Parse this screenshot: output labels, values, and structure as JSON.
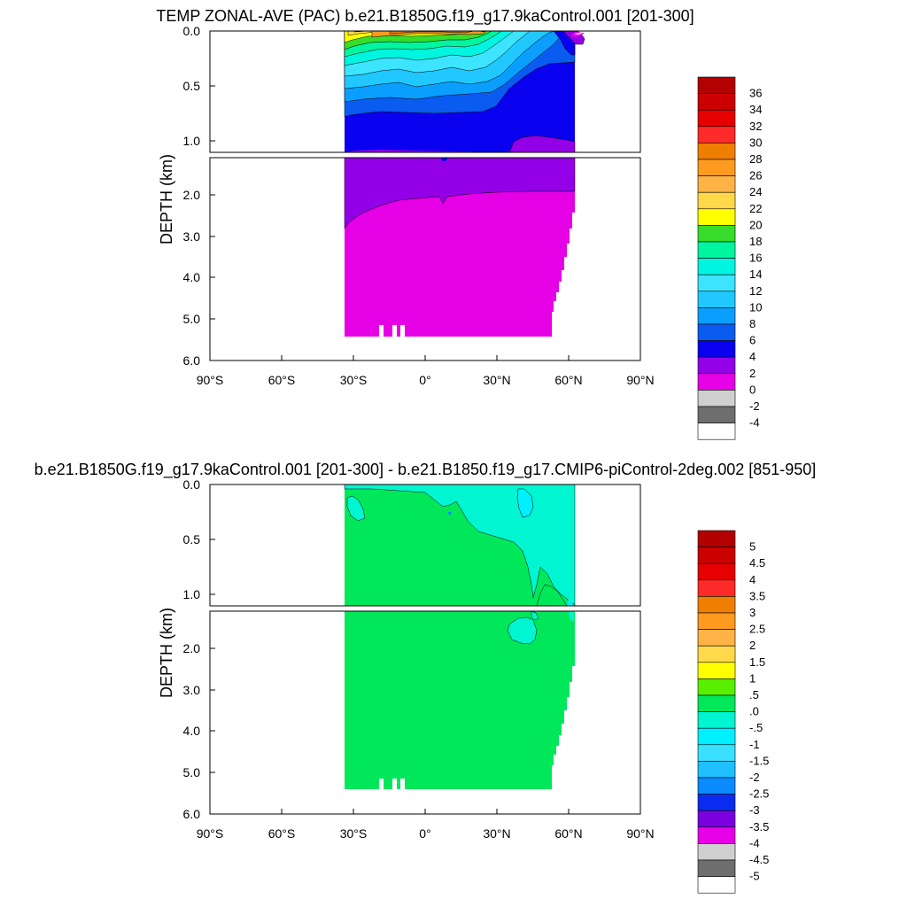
{
  "chart_data": [
    {
      "type": "heatmap",
      "title": "TEMP ZONAL-AVE (PAC) b.e21.B1850G.f19_g17.9kaControl.001 [201-300]",
      "ylabel": "DEPTH (km)",
      "x_tick_labels": [
        "90°S",
        "60°S",
        "30°S",
        "0°",
        "30°N",
        "60°N",
        "90°N"
      ],
      "xlim": [
        -90,
        90
      ],
      "upper_panel_ylim": [
        0.0,
        1.15
      ],
      "upper_panel_ticks": [
        "0.0",
        "0.5",
        "1.0"
      ],
      "lower_panel_ylim": [
        1.15,
        6.0
      ],
      "lower_panel_ticks": [
        "2.0",
        "3.0",
        "4.0",
        "5.0",
        "6.0"
      ],
      "colorbar": {
        "labels": [
          "36",
          "34",
          "32",
          "30",
          "28",
          "26",
          "24",
          "22",
          "20",
          "18",
          "16",
          "14",
          "12",
          "10",
          "8",
          "6",
          "4",
          "2",
          "0",
          "-2",
          "-4"
        ],
        "colors": [
          "#b30000",
          "#cc0000",
          "#e60000",
          "#ff2a2a",
          "#ee7f00",
          "#ff9a20",
          "#ffb347",
          "#ffd94a",
          "#ffff00",
          "#37dd2a",
          "#00f5a0",
          "#00f5e0",
          "#3de4ff",
          "#20c8ff",
          "#0a9eff",
          "#0a5cf0",
          "#0a00f0",
          "#9300e8",
          "#e600e6",
          "#cfcfcf",
          "#6e6e6e",
          "#ffffff"
        ]
      }
    },
    {
      "type": "heatmap",
      "title": "b.e21.B1850G.f19_g17.9kaControl.001 [201-300] - b.e21.B1850.f19_g17.CMIP6-piControl-2deg.002 [851-950]",
      "ylabel": "DEPTH (km)",
      "x_tick_labels": [
        "90°S",
        "60°S",
        "30°S",
        "0°",
        "30°N",
        "60°N",
        "90°N"
      ],
      "xlim": [
        -90,
        90
      ],
      "upper_panel_ylim": [
        0.0,
        1.15
      ],
      "upper_panel_ticks": [
        "0.0",
        "0.5",
        "1.0"
      ],
      "lower_panel_ylim": [
        1.15,
        6.0
      ],
      "lower_panel_ticks": [
        "2.0",
        "3.0",
        "4.0",
        "5.0",
        "6.0"
      ],
      "colorbar": {
        "labels": [
          "5",
          "4.5",
          "4",
          "3.5",
          "3",
          "2.5",
          "2",
          "1.5",
          "1",
          ".5",
          ".0",
          "-.5",
          "-1",
          "-1.5",
          "-2",
          "-2.5",
          "-3",
          "-3.5",
          "-4",
          "-4.5",
          "-5"
        ],
        "colors": [
          "#b30000",
          "#cc0000",
          "#e60000",
          "#ff2a2a",
          "#ee7f00",
          "#ff9a20",
          "#ffb347",
          "#ffd94a",
          "#ffff00",
          "#59f000",
          "#00e85a",
          "#00f5d0",
          "#00f0ff",
          "#3ce0ff",
          "#20c0ff",
          "#0a8cff",
          "#0a2cf0",
          "#7a00e0",
          "#e600e6",
          "#cfcfcf",
          "#6e6e6e",
          "#ffffff"
        ]
      }
    }
  ]
}
